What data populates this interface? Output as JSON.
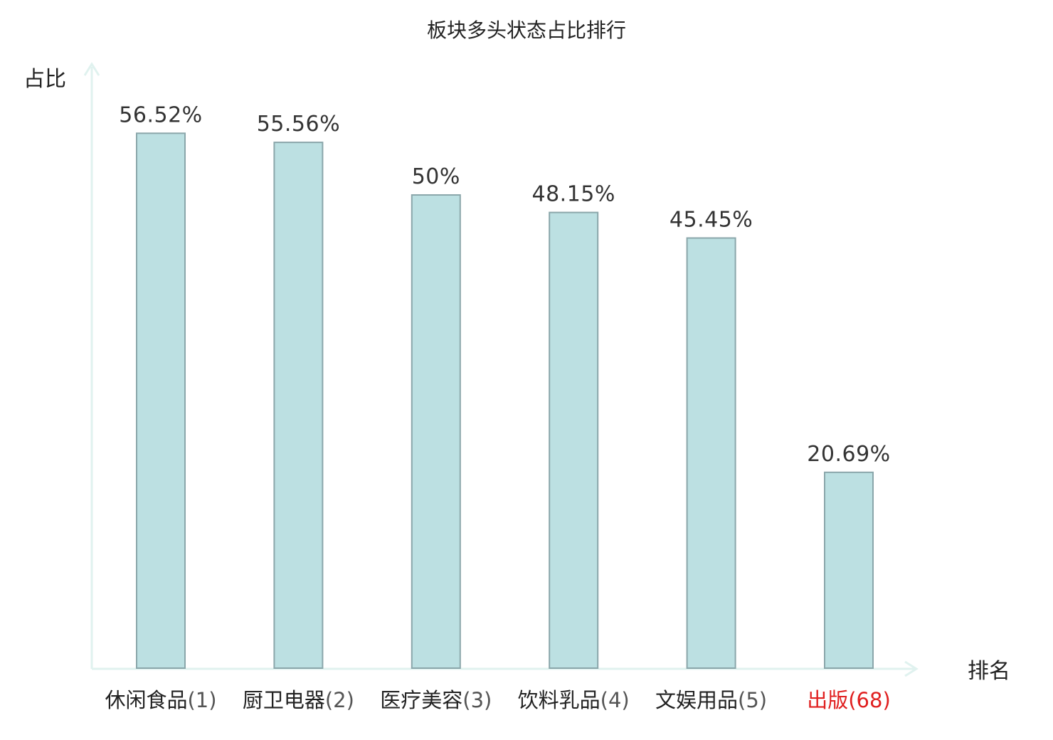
{
  "chart_data": {
    "type": "bar",
    "title": "板块多头状态占比排行",
    "ylabel": "占比",
    "xlabel": "排名",
    "ylim": [
      0,
      60
    ],
    "categories": [
      {
        "name": "休闲食品",
        "rank": "(1)",
        "highlight": false
      },
      {
        "name": "厨卫电器",
        "rank": "(2)",
        "highlight": false
      },
      {
        "name": "医疗美容",
        "rank": "(3)",
        "highlight": false
      },
      {
        "name": "饮料乳品",
        "rank": "(4)",
        "highlight": false
      },
      {
        "name": "文娱用品",
        "rank": "(5)",
        "highlight": false
      },
      {
        "name": "出版",
        "rank": "(68)",
        "highlight": true
      }
    ],
    "values": [
      56.52,
      55.56,
      50,
      48.15,
      45.45,
      20.69
    ],
    "value_labels": [
      "56.52%",
      "55.56%",
      "50%",
      "48.15%",
      "45.45%",
      "20.69%"
    ],
    "grid": false,
    "colors": {
      "bar_fill": "#bce0e2",
      "bar_stroke": "#8aa6aa",
      "axis": "#e0f2ef",
      "text": "#222222",
      "rank_text": "#555555",
      "highlight": "#e02020"
    }
  }
}
